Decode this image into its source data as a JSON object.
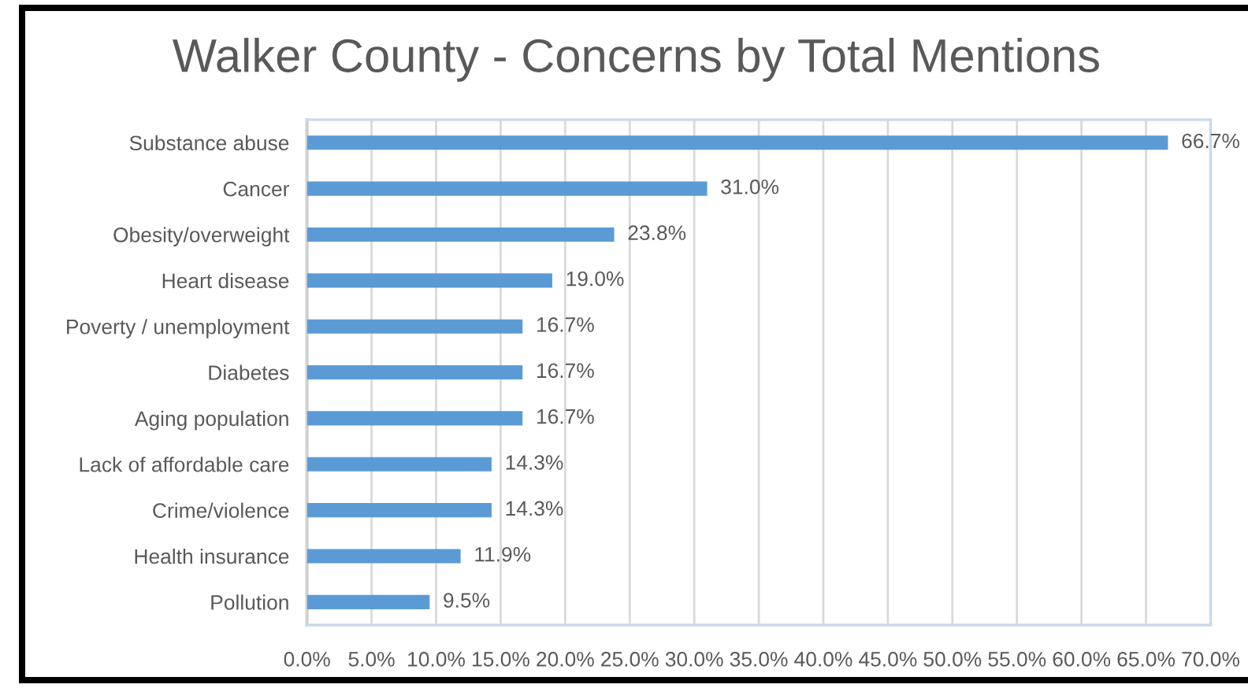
{
  "chart_data": {
    "type": "bar",
    "orientation": "horizontal",
    "title": "Walker County - Concerns by Total Mentions",
    "categories": [
      "Substance abuse",
      "Cancer",
      "Obesity/overweight",
      "Heart disease",
      "Poverty / unemployment",
      "Diabetes",
      "Aging population",
      "Lack of affordable care",
      "Crime/violence",
      "Health insurance",
      "Pollution"
    ],
    "values": [
      66.7,
      31.0,
      23.8,
      19.0,
      16.7,
      16.7,
      16.7,
      14.3,
      14.3,
      11.9,
      9.5
    ],
    "value_labels": [
      "66.7%",
      "31.0%",
      "23.8%",
      "19.0%",
      "16.7%",
      "16.7%",
      "16.7%",
      "14.3%",
      "14.3%",
      "11.9%",
      "9.5%"
    ],
    "color": "#5b9bd5",
    "xlim": [
      0,
      70
    ],
    "xticks": [
      {
        "value": 0,
        "label": "0.0%"
      },
      {
        "value": 5,
        "label": "5.0%"
      },
      {
        "value": 10,
        "label": "10.0%"
      },
      {
        "value": 15,
        "label": "15.0%"
      },
      {
        "value": 20,
        "label": "20.0%"
      },
      {
        "value": 25,
        "label": "25.0%"
      },
      {
        "value": 30,
        "label": "30.0%"
      },
      {
        "value": 35,
        "label": "35.0%"
      },
      {
        "value": 40,
        "label": "40.0%"
      },
      {
        "value": 45,
        "label": "45.0%"
      },
      {
        "value": 50,
        "label": "50.0%"
      },
      {
        "value": 55,
        "label": "55.0%"
      },
      {
        "value": 60,
        "label": "60.0%"
      },
      {
        "value": 65,
        "label": "65.0%"
      },
      {
        "value": 70,
        "label": "70.0%"
      }
    ],
    "grid": "x",
    "legend": false
  }
}
